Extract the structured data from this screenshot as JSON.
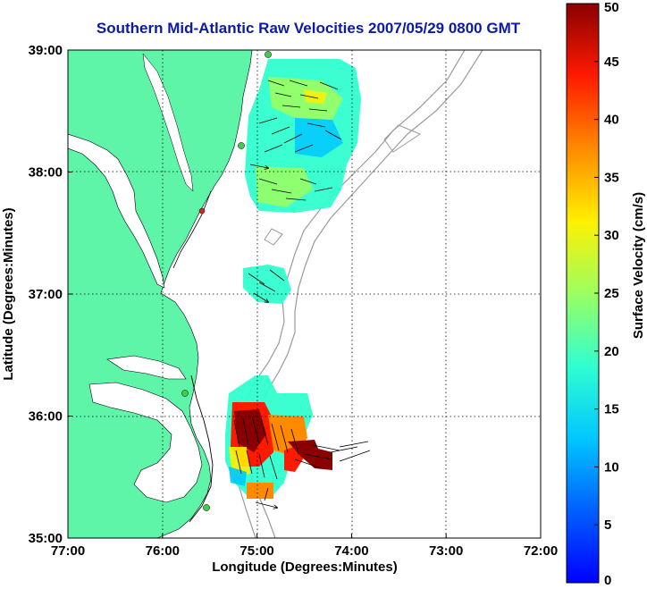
{
  "chart_data": {
    "type": "heatmap",
    "title": "Southern Mid-Atlantic Raw Velocities 2007/05/29 0800 GMT",
    "xlabel": "Longitude (Degrees:Minutes)",
    "ylabel": "Latitude (Degrees:Minutes)",
    "colorbar_label": "Surface Velocity (cm/s)",
    "x_ticks": [
      "77:00",
      "76:00",
      "75:00",
      "74:00",
      "73:00",
      "72:00"
    ],
    "y_ticks": [
      "39:00",
      "38:00",
      "37:00",
      "36:00",
      "35:00"
    ],
    "colorbar_ticks": [
      "50",
      "45",
      "40",
      "35",
      "30",
      "25",
      "20",
      "15",
      "10",
      "5",
      "0"
    ],
    "xlim": [
      -77,
      -72
    ],
    "ylim": [
      35,
      39
    ],
    "clim": [
      0,
      50
    ],
    "grid": true,
    "colors": {
      "land": "#5ff5a8",
      "title": "#0b1aa8",
      "isobath": "#9a9a9a"
    }
  }
}
